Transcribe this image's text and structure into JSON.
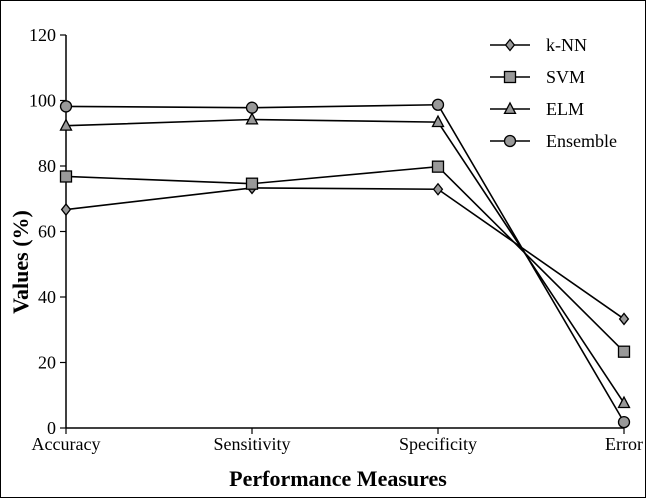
{
  "chart_data": {
    "type": "line",
    "title": "",
    "xlabel": "Performance Measures",
    "ylabel": "Values (%)",
    "categories": [
      "Accuracy",
      "Sensitivity",
      "Specificity",
      "Error"
    ],
    "ylim": [
      0,
      120
    ],
    "yticks": [
      "0",
      "20",
      "40",
      "60",
      "80",
      "100",
      "120"
    ],
    "grid": false,
    "legend_position": "top-right",
    "series": [
      {
        "name": "k-NN",
        "marker": "diamond",
        "values": [
          66.7,
          73.3,
          72.9,
          33.3
        ]
      },
      {
        "name": "SVM",
        "marker": "square",
        "values": [
          76.8,
          74.6,
          79.8,
          23.3
        ]
      },
      {
        "name": "ELM",
        "marker": "triangle",
        "values": [
          92.3,
          94.2,
          93.4,
          7.6
        ]
      },
      {
        "name": "Ensemble",
        "marker": "circle",
        "values": [
          98.2,
          97.8,
          98.7,
          1.8
        ]
      }
    ],
    "colors": {
      "line": "#000000",
      "marker_fill": "#999999"
    }
  }
}
